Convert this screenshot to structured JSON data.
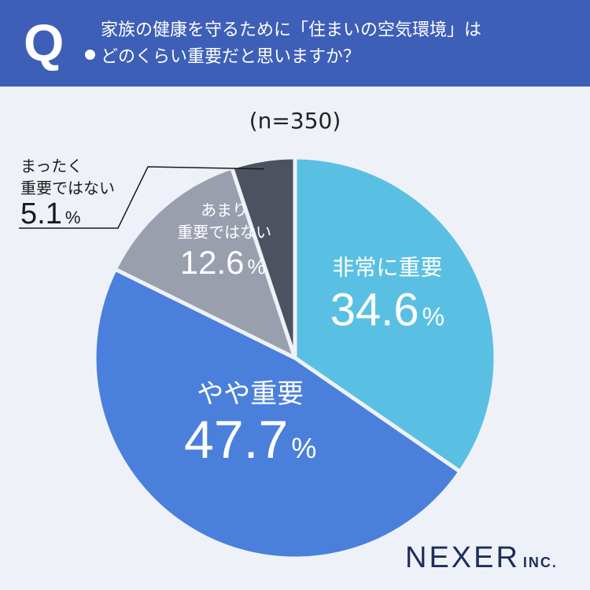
{
  "header": {
    "q_mark": "Q",
    "question_line1": "家族の健康を守るために「住まいの空気環境」は",
    "question_line2": "どのくらい重要だと思いますか？"
  },
  "sample_size": "(n=350)",
  "chart_data": {
    "type": "pie",
    "start": "12 o'clock, clockwise",
    "slices": [
      {
        "label": "非常に重要",
        "value": 34.6,
        "pct_text": "34.6",
        "color": "#5ac0e3"
      },
      {
        "label": "やや重要",
        "value": 47.7,
        "pct_text": "47.7",
        "color": "#4a80dc"
      },
      {
        "label_lines": [
          "あまり",
          "重要ではない"
        ],
        "value": 12.6,
        "pct_text": "12.6",
        "color": "#9a9fae"
      },
      {
        "label_lines": [
          "まったく",
          "重要ではない"
        ],
        "value": 5.1,
        "pct_text": "5.1",
        "color": "#4c5260"
      }
    ],
    "percent_sign": "%",
    "background_color": "#eef2f8"
  },
  "logo": {
    "main": "NEXER",
    "suffix": "INC."
  }
}
